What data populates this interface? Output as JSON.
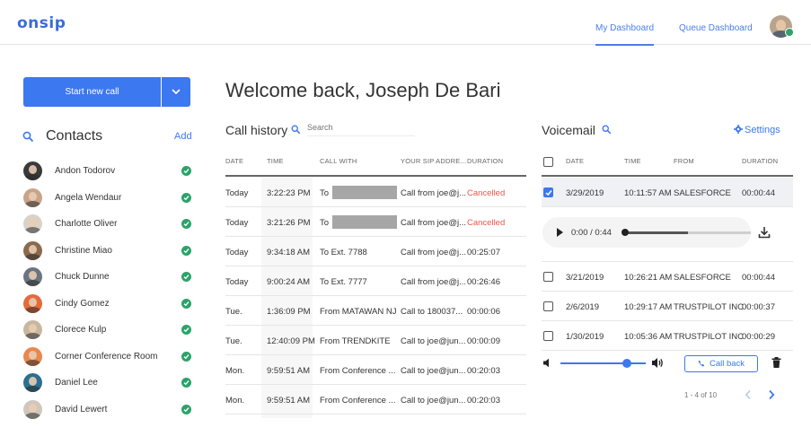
{
  "header": {
    "logo": "onsip",
    "tabs": [
      {
        "label": "My Dashboard",
        "active": true
      },
      {
        "label": "Queue Dashboard",
        "active": false
      }
    ]
  },
  "start_call": {
    "label": "Start new call"
  },
  "contacts": {
    "title": "Contacts",
    "add_label": "Add",
    "items": [
      {
        "name": "Andon Todorov",
        "avatar_color": "#3a3a3a"
      },
      {
        "name": "Angela Wendaur",
        "avatar_color": "#c9a48a"
      },
      {
        "name": "Charlotte Oliver",
        "avatar_color": "#d9d2c8"
      },
      {
        "name": "Christine Miao",
        "avatar_color": "#8a6a4e"
      },
      {
        "name": "Chuck Dunne",
        "avatar_color": "#6b7580"
      },
      {
        "name": "Cindy Gomez",
        "avatar_color": "#e46a3c"
      },
      {
        "name": "Clorece Kulp",
        "avatar_color": "#c8b79f"
      },
      {
        "name": "Corner Conference Room",
        "avatar_color": "#e8884e"
      },
      {
        "name": "Daniel Lee",
        "avatar_color": "#2d6f8f"
      },
      {
        "name": "David Lewert",
        "avatar_color": "#cfc7bd"
      }
    ]
  },
  "welcome": "Welcome back, Joseph De Bari",
  "call_history": {
    "title": "Call history",
    "search_placeholder": "Search",
    "columns": [
      "DATE",
      "TIME",
      "CALL WITH",
      "YOUR SIP ADDRE...",
      "DURATION"
    ],
    "rows": [
      {
        "date": "Today",
        "time": "3:22:23 PM",
        "with": "To",
        "redacted": true,
        "sip": "Call from joe@j...",
        "duration": "Cancelled",
        "cancelled": true
      },
      {
        "date": "Today",
        "time": "3:21:26 PM",
        "with": "To",
        "redacted": true,
        "sip": "Call from joe@j...",
        "duration": "Cancelled",
        "cancelled": true
      },
      {
        "date": "Today",
        "time": "9:34:18 AM",
        "with": "To Ext. 7788",
        "redacted": false,
        "sip": "Call from joe@j...",
        "duration": "00:25:07",
        "cancelled": false
      },
      {
        "date": "Today",
        "time": "9:00:24 AM",
        "with": "To Ext. 7777",
        "redacted": false,
        "sip": "Call from joe@j...",
        "duration": "00:26:46",
        "cancelled": false
      },
      {
        "date": "Tue.",
        "time": "1:36:09 PM",
        "with": "From MATAWAN NJ",
        "redacted": false,
        "sip": "Call to 180037...",
        "duration": "00:00:06",
        "cancelled": false
      },
      {
        "date": "Tue.",
        "time": "12:40:09 PM",
        "with": "From TRENDKITE",
        "redacted": false,
        "sip": "Call to joe@jun...",
        "duration": "00:00:09",
        "cancelled": false
      },
      {
        "date": "Mon.",
        "time": "9:59:51 AM",
        "with": "From Conference ...",
        "redacted": false,
        "sip": "Call to joe@jun...",
        "duration": "00:20:03",
        "cancelled": false
      },
      {
        "date": "Mon.",
        "time": "9:59:51 AM",
        "with": "From Conference ...",
        "redacted": false,
        "sip": "Call to joe@jun...",
        "duration": "00:20:03",
        "cancelled": false
      }
    ]
  },
  "voicemail": {
    "title": "Voicemail",
    "settings_label": "Settings",
    "columns": [
      "DATE",
      "TIME",
      "FROM",
      "DURATION"
    ],
    "rows": [
      {
        "date": "3/29/2019",
        "time": "10:11:57 AM",
        "from": "SALESFORCE",
        "duration": "00:00:44",
        "checked": true
      },
      {
        "date": "3/21/2019",
        "time": "10:26:21 AM",
        "from": "SALESFORCE",
        "duration": "00:00:44",
        "checked": false
      },
      {
        "date": "2/6/2019",
        "time": "10:29:17 AM",
        "from": "TRUSTPILOT INC",
        "duration": "00:00:37",
        "checked": false
      },
      {
        "date": "1/30/2019",
        "time": "10:05:36 AM",
        "from": "TRUSTPILOT INC",
        "duration": "00:00:29",
        "checked": false
      }
    ],
    "player": {
      "time": "0:00 / 0:44",
      "progress": 0.0
    },
    "volume": 0.78,
    "call_back_label": "Call back",
    "pager": "1 - 4 of 10"
  },
  "colors": {
    "accent": "#3c78f0",
    "online": "#2ba36a",
    "cancelled": "#e8574a"
  }
}
